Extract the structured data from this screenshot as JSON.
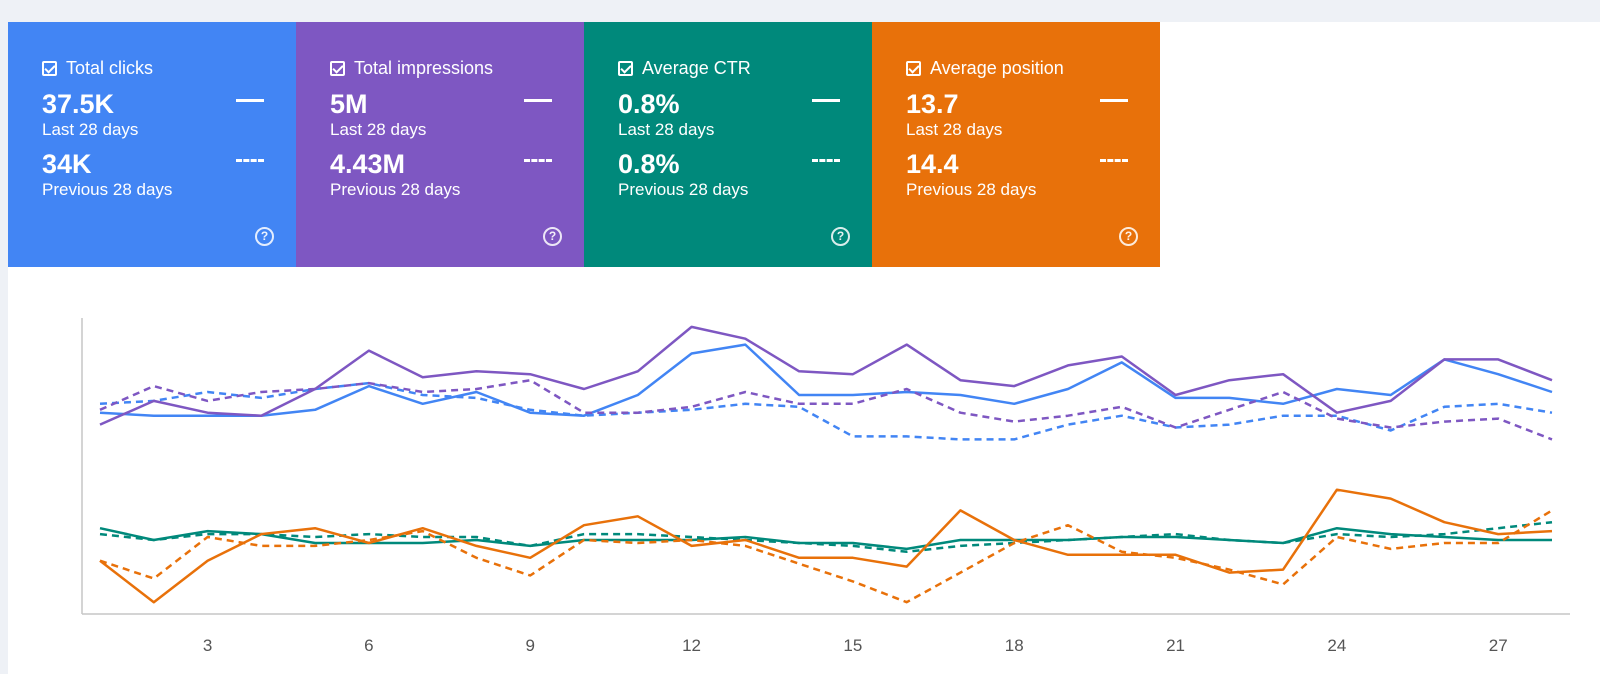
{
  "cards": [
    {
      "label": "Total clicks",
      "value": "37.5K",
      "value_period": "Last 28 days",
      "prev_value": "34K",
      "prev_period": "Previous 28 days",
      "color": "#4285f4"
    },
    {
      "label": "Total impressions",
      "value": "5M",
      "value_period": "Last 28 days",
      "prev_value": "4.43M",
      "prev_period": "Previous 28 days",
      "color": "#7e57c2"
    },
    {
      "label": "Average CTR",
      "value": "0.8%",
      "value_period": "Last 28 days",
      "prev_value": "0.8%",
      "prev_period": "Previous 28 days",
      "color": "#00897b"
    },
    {
      "label": "Average position",
      "value": "13.7",
      "value_period": "Last 28 days",
      "prev_value": "14.4",
      "prev_period": "Previous 28 days",
      "color": "#e8710a"
    }
  ],
  "chart_data": {
    "type": "line",
    "x": [
      1,
      2,
      3,
      4,
      5,
      6,
      7,
      8,
      9,
      10,
      11,
      12,
      13,
      14,
      15,
      16,
      17,
      18,
      19,
      20,
      21,
      22,
      23,
      24,
      25,
      26,
      27,
      28
    ],
    "xticks": [
      "3",
      "6",
      "9",
      "12",
      "15",
      "18",
      "21",
      "24",
      "27"
    ],
    "xtick_values": [
      3,
      6,
      9,
      12,
      15,
      18,
      21,
      24,
      27
    ],
    "ylim": [
      0,
      100
    ],
    "grid": false,
    "series": [
      {
        "color": "#4285f4",
        "style": "solid",
        "values": [
          68,
          67,
          67,
          67,
          69,
          77,
          71,
          75,
          68,
          67,
          74,
          88,
          91,
          74,
          74,
          75,
          74,
          71,
          76,
          85,
          73,
          73,
          71,
          76,
          74,
          86,
          81,
          75
        ]
      },
      {
        "color": "#4285f4",
        "style": "dashed",
        "values": [
          71,
          72,
          75,
          73,
          76,
          78,
          74,
          73,
          69,
          67,
          68,
          69,
          71,
          70,
          60,
          60,
          59,
          59,
          64,
          67,
          63,
          64,
          67,
          67,
          62,
          70,
          71,
          68
        ]
      },
      {
        "color": "#7e57c2",
        "style": "solid",
        "values": [
          64,
          72,
          68,
          67,
          76,
          89,
          80,
          82,
          81,
          76,
          82,
          97,
          93,
          82,
          81,
          91,
          79,
          77,
          84,
          87,
          74,
          79,
          81,
          68,
          72,
          86,
          86,
          79
        ]
      },
      {
        "color": "#7e57c2",
        "style": "dashed",
        "values": [
          69,
          77,
          72,
          75,
          76,
          78,
          75,
          76,
          79,
          68,
          68,
          70,
          75,
          71,
          71,
          76,
          68,
          65,
          67,
          70,
          63,
          69,
          75,
          66,
          63,
          65,
          66,
          59
        ]
      },
      {
        "color": "#00897b",
        "style": "solid",
        "values": [
          29,
          25,
          28,
          27,
          24,
          24,
          24,
          25,
          23,
          25,
          25,
          25,
          26,
          24,
          24,
          22,
          25,
          25,
          25,
          26,
          26,
          25,
          24,
          29,
          27,
          26,
          25,
          25
        ]
      },
      {
        "color": "#00897b",
        "style": "dashed",
        "values": [
          27,
          25,
          27,
          27,
          26,
          27,
          26,
          26,
          23,
          27,
          27,
          26,
          25,
          24,
          23,
          21,
          23,
          24,
          25,
          26,
          27,
          25,
          24,
          27,
          26,
          27,
          29,
          31
        ]
      },
      {
        "color": "#e8710a",
        "style": "solid",
        "values": [
          18,
          4,
          18,
          27,
          29,
          24,
          29,
          23,
          19,
          30,
          33,
          23,
          25,
          19,
          19,
          16,
          35,
          25,
          20,
          20,
          20,
          14,
          15,
          42,
          39,
          31,
          27,
          28
        ]
      },
      {
        "color": "#e8710a",
        "style": "dashed",
        "values": [
          18,
          12,
          26,
          23,
          23,
          25,
          28,
          19,
          13,
          25,
          24,
          25,
          23,
          17,
          11,
          4,
          14,
          24,
          30,
          21,
          19,
          15,
          10,
          26,
          22,
          24,
          24,
          35
        ]
      }
    ]
  }
}
